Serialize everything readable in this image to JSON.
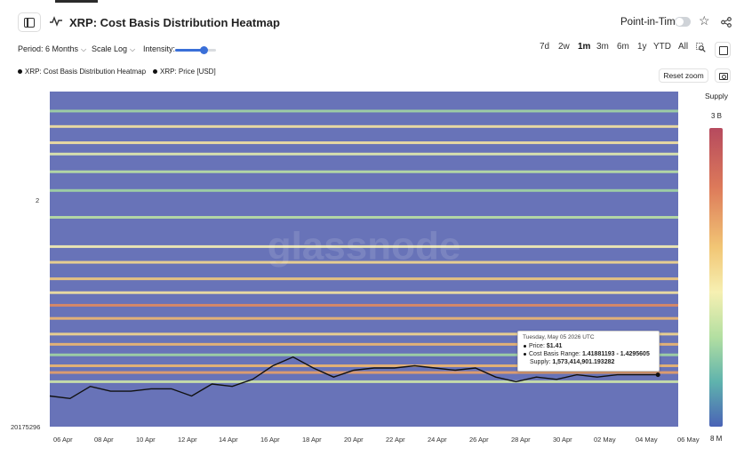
{
  "header": {
    "title": "XRP: Cost Basis Distribution Heatmap",
    "point_in_time_label": "Point-in-Time",
    "point_in_time_on": false
  },
  "controls": {
    "period_label": "Period: 6 Months",
    "scale_label": "Scale Log",
    "intensity_label": "Intensity:",
    "intensity_level": 0.7,
    "ranges": [
      "7d",
      "2w",
      "1m",
      "3m",
      "6m",
      "1y",
      "YTD",
      "All"
    ],
    "active_range": "1m",
    "reset_zoom_label": "Reset zoom"
  },
  "icons": {
    "sidebar_toggle": "sidebar-icon",
    "metric": "activity-icon",
    "favorite": "star-icon",
    "share": "share-icon",
    "zoom": "zoom-select-icon",
    "calendar": "calendar-icon",
    "camera": "camera-icon"
  },
  "legend": {
    "heatmap": "XRP: Cost Basis Distribution Heatmap",
    "price": "XRP: Price [USD]"
  },
  "watermark": "glassnode",
  "color_scale": {
    "title": "Supply",
    "max_label": "3 B",
    "min_label": "8 M",
    "colors": [
      "#b64a5e",
      "#dd7a5a",
      "#f2c675",
      "#f6f0b2",
      "#b3dfa1",
      "#5fb3ad",
      "#4a63b6"
    ],
    "background_color": "#6873b8"
  },
  "tooltip": {
    "date": "Tuesday, May 05 2026 UTC",
    "price_label": "Price:",
    "price_value": "$1.41",
    "range_label": "Cost Basis Range:",
    "range_value": "1.41881193 - 1.4295605",
    "supply_label": "Supply:",
    "supply_value": "1,573,414,901.193282"
  },
  "chart_data": {
    "type": "heatmap",
    "title": "XRP: Cost Basis Distribution Heatmap",
    "x_tick_labels": [
      "06 Apr",
      "08 Apr",
      "10 Apr",
      "12 Apr",
      "14 Apr",
      "16 Apr",
      "18 Apr",
      "20 Apr",
      "22 Apr",
      "24 Apr",
      "26 Apr",
      "28 Apr",
      "30 Apr",
      "02 May",
      "04 May",
      "06 May"
    ],
    "y_tick_labels": [
      "2",
      "20175296"
    ],
    "y_scale": "log",
    "grid": false,
    "legend_placement": "top-left",
    "price_series": {
      "name": "XRP: Price [USD]",
      "x": [
        "2026-04-05",
        "2026-04-06",
        "2026-04-07",
        "2026-04-08",
        "2026-04-09",
        "2026-04-10",
        "2026-04-11",
        "2026-04-12",
        "2026-04-13",
        "2026-04-14",
        "2026-04-15",
        "2026-04-16",
        "2026-04-17",
        "2026-04-18",
        "2026-04-19",
        "2026-04-20",
        "2026-04-21",
        "2026-04-22",
        "2026-04-23",
        "2026-04-24",
        "2026-04-25",
        "2026-04-26",
        "2026-04-27",
        "2026-04-28",
        "2026-04-29",
        "2026-04-30",
        "2026-05-01",
        "2026-05-02",
        "2026-05-03",
        "2026-05-04",
        "2026-05-05"
      ],
      "y": [
        1.32,
        1.31,
        1.36,
        1.34,
        1.34,
        1.35,
        1.35,
        1.32,
        1.37,
        1.36,
        1.39,
        1.45,
        1.49,
        1.44,
        1.4,
        1.43,
        1.44,
        1.44,
        1.45,
        1.44,
        1.43,
        1.44,
        1.4,
        1.38,
        1.4,
        1.39,
        1.41,
        1.4,
        1.41,
        1.41,
        1.41
      ]
    },
    "supply_bands": [
      {
        "price": 3.2,
        "intensity": 0.3
      },
      {
        "price": 3.05,
        "intensity": 0.55
      },
      {
        "price": 2.9,
        "intensity": 0.55
      },
      {
        "price": 2.8,
        "intensity": 0.45
      },
      {
        "price": 2.65,
        "intensity": 0.35
      },
      {
        "price": 2.5,
        "intensity": 0.3
      },
      {
        "price": 2.3,
        "intensity": 0.35
      },
      {
        "price": 2.1,
        "intensity": 0.5
      },
      {
        "price": 2.0,
        "intensity": 0.6
      },
      {
        "price": 1.9,
        "intensity": 0.65
      },
      {
        "price": 1.82,
        "intensity": 0.55
      },
      {
        "price": 1.75,
        "intensity": 0.8
      },
      {
        "price": 1.68,
        "intensity": 0.7
      },
      {
        "price": 1.6,
        "intensity": 0.6
      },
      {
        "price": 1.55,
        "intensity": 0.7
      },
      {
        "price": 1.5,
        "intensity": 0.3
      },
      {
        "price": 1.45,
        "intensity": 0.7
      },
      {
        "price": 1.42,
        "intensity": 0.75
      },
      {
        "price": 1.38,
        "intensity": 0.4
      }
    ]
  }
}
